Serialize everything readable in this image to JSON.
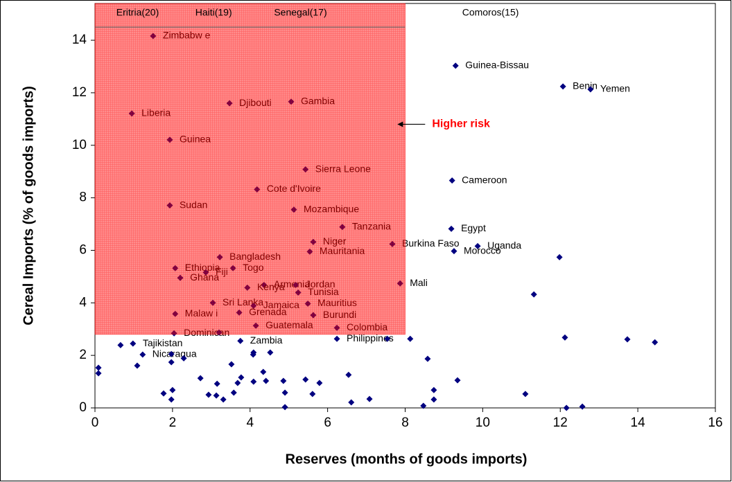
{
  "chart_data": {
    "type": "scatter",
    "x_label": "Reserves (months of goods imports)",
    "y_label": "Cereal Imports (% of goods imports)",
    "xlim": [
      0,
      16
    ],
    "ylim": [
      0,
      15.4
    ],
    "xticks": [
      0,
      2,
      4,
      6,
      8,
      10,
      12,
      14,
      16
    ],
    "yticks": [
      0,
      2,
      4,
      6,
      8,
      10,
      12,
      14
    ],
    "color": "#000080",
    "shaded_region": {
      "xlim": [
        0,
        8
      ],
      "ylim": [
        2.8,
        15.4
      ],
      "color": "#ff0000",
      "cap_line": 14.5
    },
    "annotation": {
      "text": "Higher risk",
      "x": 7.8,
      "y": 10.8,
      "color": "#ff0000"
    },
    "offscale_labels": [
      {
        "text": "Eritria(20)",
        "x": 1.1
      },
      {
        "text": "Haiti(19)",
        "x": 3.06
      },
      {
        "text": "Senegal(17)",
        "x": 5.3
      },
      {
        "text": "Comoros(15)",
        "x": 10.2
      }
    ],
    "x": [
      1.5,
      9.3,
      12.07,
      12.78,
      3.47,
      5.06,
      0.95,
      1.93,
      5.43,
      9.21,
      4.18,
      1.93,
      5.13,
      6.38,
      9.19,
      5.63,
      7.67,
      9.87,
      9.26,
      5.54,
      3.22,
      11.98,
      2.07,
      3.56,
      2.86,
      2.2,
      7.87,
      4.36,
      3.93,
      5.18,
      5.24,
      11.32,
      3.04,
      5.49,
      4.09,
      3.72,
      2.07,
      5.63,
      4.15,
      6.24,
      2.04,
      3.2,
      6.24,
      3.75,
      0.98,
      0.66,
      1.23,
      7.54,
      8.13,
      12.12,
      13.73,
      14.44,
      0.09,
      0.09,
      1.09,
      1.77,
      1.97,
      1.97,
      2.0,
      1.97,
      2.29,
      2.72,
      2.93,
      3.13,
      3.15,
      3.31,
      3.52,
      3.58,
      3.68,
      3.77,
      4.08,
      4.09,
      4.09,
      4.34,
      4.41,
      4.52,
      4.86,
      4.9,
      4.9,
      5.43,
      5.61,
      5.79,
      6.54,
      6.61,
      7.08,
      8.47,
      8.58,
      8.74,
      8.74,
      9.35,
      11.1,
      12.16,
      12.57
    ],
    "values": [
      14.16,
      13.03,
      12.24,
      12.13,
      11.6,
      11.66,
      11.21,
      10.21,
      9.08,
      8.66,
      8.32,
      7.71,
      7.55,
      6.89,
      6.82,
      6.32,
      6.24,
      6.16,
      5.97,
      5.95,
      5.74,
      5.74,
      5.32,
      5.32,
      5.16,
      4.95,
      4.74,
      4.68,
      4.58,
      4.68,
      4.39,
      4.32,
      4.0,
      3.97,
      3.89,
      3.63,
      3.58,
      3.53,
      3.13,
      3.05,
      2.84,
      2.87,
      2.63,
      2.55,
      2.45,
      2.39,
      2.03,
      2.63,
      2.63,
      2.68,
      2.61,
      2.5,
      1.53,
      1.32,
      1.61,
      0.55,
      2.05,
      1.74,
      0.68,
      0.32,
      1.89,
      1.13,
      0.5,
      0.47,
      0.92,
      0.32,
      1.66,
      0.58,
      0.95,
      1.16,
      2.03,
      2.11,
      1.0,
      1.37,
      1.03,
      2.11,
      1.03,
      0.58,
      0.03,
      1.08,
      0.53,
      0.95,
      1.26,
      0.21,
      0.34,
      0.08,
      1.87,
      0.68,
      0.32,
      1.05,
      0.53,
      0.0,
      0.05
    ],
    "point_labels": [
      "Zimbabw e",
      "Guinea-Bissau",
      "Benin",
      "Yemen",
      "Djibouti",
      "Gambia",
      "Liberia",
      "Guinea",
      "Sierra Leone",
      "Cameroon",
      "Cote d'Ivoire",
      "Sudan",
      "Mozambique",
      "Tanzania",
      "Egypt",
      "Niger",
      "Burkina Faso",
      "Uganda",
      "Morocco",
      "Mauritania",
      "Bangladesh",
      null,
      "Ethiopia",
      "Togo",
      "Fiji",
      "Ghana",
      "Mali",
      "Armenia",
      "Kenya",
      "Jordan",
      "Tunisia",
      null,
      "Sri Lanka",
      "Mauritius",
      "Jamaica",
      "Grenada",
      "Malaw i",
      "Burundi",
      "Guatemala",
      "Colombia",
      "Dominican",
      null,
      "Philippines",
      "Zambia",
      "Tajikistan",
      null,
      "Nicaragua",
      null,
      null,
      null,
      null,
      null,
      null,
      null,
      null,
      null,
      null,
      null,
      null,
      null,
      null,
      null,
      null,
      null,
      null,
      null,
      null,
      null,
      null,
      null,
      null,
      null,
      null,
      null,
      null,
      null,
      null,
      null,
      null,
      null,
      null,
      null,
      null,
      null,
      null,
      null,
      null,
      null,
      null,
      null,
      null,
      null,
      null
    ]
  }
}
